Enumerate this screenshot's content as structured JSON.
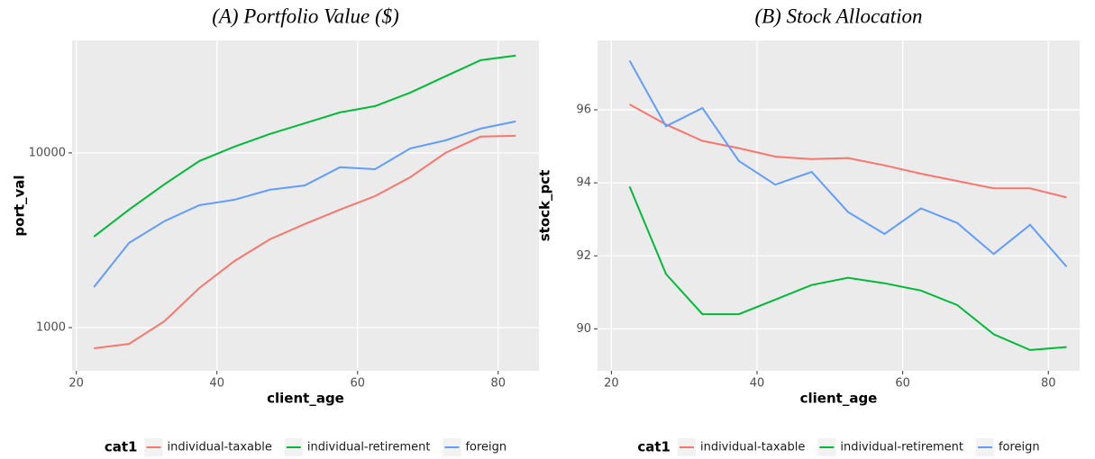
{
  "chart_data": [
    {
      "type": "line",
      "title": "(A) Portfolio Value ($)",
      "xlabel": "client_age",
      "ylabel": "port_val",
      "x": [
        22.5,
        27.5,
        32.5,
        37.5,
        42.5,
        47.5,
        52.5,
        57.5,
        62.5,
        67.5,
        72.5,
        77.5,
        82.5
      ],
      "series": [
        {
          "name": "individual-taxable",
          "color": "#F8766D",
          "values": [
            761,
            807,
            1086,
            1686,
            2407,
            3199,
            3917,
            4734,
            5658,
            7261,
            10000,
            12390,
            12535
          ]
        },
        {
          "name": "individual-retirement",
          "color": "#00BA38",
          "values": [
            3318,
            4734,
            6600,
            8990,
            10870,
            12830,
            14790,
            17060,
            18540,
            22150,
            27430,
            33950,
            36030
          ]
        },
        {
          "name": "foreign",
          "color": "#619CFF",
          "values": [
            1706,
            3053,
            4059,
            5023,
            5395,
            6150,
            6520,
            8280,
            8070,
            10610,
            11800,
            13770,
            15140
          ]
        }
      ],
      "xlim": [
        19.4,
        85.8
      ],
      "xticks": [
        20,
        40,
        60,
        80
      ],
      "ylim": [
        566,
        44000
      ],
      "yticks": [
        1000,
        10000
      ],
      "log_y": true,
      "grid": true,
      "legend_title": "cat1",
      "legend": "bottom"
    },
    {
      "type": "line",
      "title": "(B) Stock Allocation",
      "xlabel": "client_age",
      "ylabel": "stock_pct",
      "x": [
        22.5,
        27.5,
        32.5,
        37.5,
        42.5,
        47.5,
        52.5,
        57.5,
        62.5,
        67.5,
        72.5,
        77.5,
        82.5
      ],
      "series": [
        {
          "name": "individual-taxable",
          "color": "#F8766D",
          "values": [
            96.15,
            95.6,
            95.15,
            94.95,
            94.72,
            94.65,
            94.68,
            94.48,
            94.25,
            94.05,
            93.85,
            93.85,
            93.6
          ]
        },
        {
          "name": "individual-retirement",
          "color": "#00BA38",
          "values": [
            93.9,
            91.5,
            90.4,
            90.4,
            90.8,
            91.2,
            91.4,
            91.25,
            91.05,
            90.65,
            89.85,
            89.42,
            89.5
          ]
        },
        {
          "name": "foreign",
          "color": "#619CFF",
          "values": [
            97.35,
            95.55,
            96.05,
            94.6,
            93.95,
            94.3,
            93.2,
            92.6,
            93.3,
            92.9,
            92.05,
            92.85,
            91.7
          ]
        }
      ],
      "xlim": [
        18.1,
        84.3
      ],
      "xticks": [
        20,
        40,
        60,
        80
      ],
      "ylim": [
        88.85,
        97.9
      ],
      "yticks": [
        90,
        92,
        94,
        96
      ],
      "log_y": false,
      "grid": true,
      "legend_title": "cat1",
      "legend": "bottom"
    }
  ]
}
